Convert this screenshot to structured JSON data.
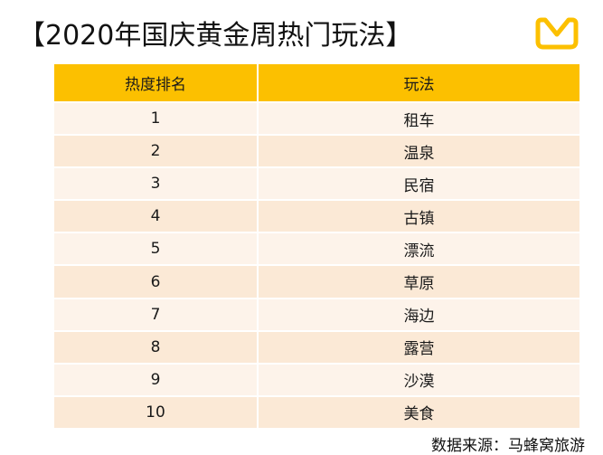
{
  "title": "【2020年国庆黄金周热门玩法】",
  "logo": {
    "icon": "mafengwo-logo-icon",
    "color": "#fcc000"
  },
  "table": {
    "headers": [
      "热度排名",
      "玩法"
    ],
    "rows": [
      {
        "rank": "1",
        "activity": "租车"
      },
      {
        "rank": "2",
        "activity": "温泉"
      },
      {
        "rank": "3",
        "activity": "民宿"
      },
      {
        "rank": "4",
        "activity": "古镇"
      },
      {
        "rank": "5",
        "activity": "漂流"
      },
      {
        "rank": "6",
        "activity": "草原"
      },
      {
        "rank": "7",
        "activity": "海边"
      },
      {
        "rank": "8",
        "activity": "露营"
      },
      {
        "rank": "9",
        "activity": "沙漠"
      },
      {
        "rank": "10",
        "activity": "美食"
      }
    ],
    "header_color": "#fcc000",
    "row_color_a": "#fbe9d6",
    "row_color_b": "#fdf3ea"
  },
  "source": "数据来源：马蜂窝旅游"
}
